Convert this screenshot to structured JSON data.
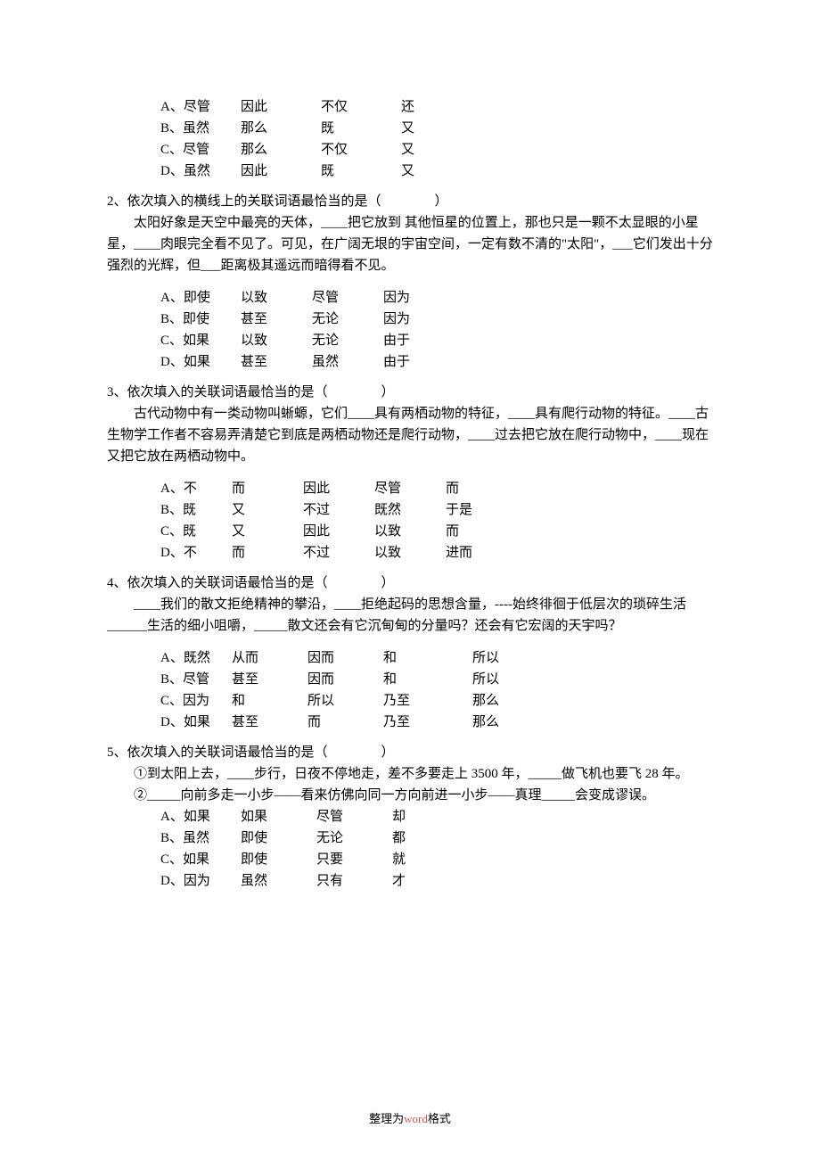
{
  "q1": {
    "options": [
      {
        "label": "A、尽管",
        "c1": "因此",
        "c2": "不仅",
        "c3": "还"
      },
      {
        "label": "B、虽然",
        "c1": "那么",
        "c2": "既",
        "c3": "又"
      },
      {
        "label": "C、尽管",
        "c1": "那么",
        "c2": "不仅",
        "c3": "又"
      },
      {
        "label": "D、虽然",
        "c1": "因此",
        "c2": "既",
        "c3": "又"
      }
    ]
  },
  "q2": {
    "stem": "2、依次填入的横线上的关联词语最恰当的是（　　　　）",
    "passage": "太阳好象是天空中最亮的天体，____把它放到 其他恒星的位置上，那也只是一颗不太显眼的小星星，____肉眼完全看不见了。可见，在广阔无垠的宇宙空间，一定有数不清的\"太阳\"，___它们发出十分强烈的光辉，但___距离极其遥远而暗得看不见。",
    "options": [
      {
        "label": "A、即使",
        "c1": "以致",
        "c2": "尽管",
        "c3": "因为"
      },
      {
        "label": "B、即使",
        "c1": "甚至",
        "c2": "无论",
        "c3": "因为"
      },
      {
        "label": "C、如果",
        "c1": "以致",
        "c2": "无论",
        "c3": "由于"
      },
      {
        "label": "D、如果",
        "c1": "甚至",
        "c2": "虽然",
        "c3": "由于"
      }
    ]
  },
  "q3": {
    "stem": "3、依次填入的关联词语最恰当的是（　　　　）",
    "passage": "古代动物中有一类动物叫蜥螈，它们____具有两栖动物的特征，____具有爬行动物的特征。____古生物学工作者不容易弄清楚它到底是两栖动物还是爬行动物，____过去把它放在爬行动物中，____现在又把它放在两栖动物中。",
    "options": [
      {
        "label": "A、不",
        "c1": "而",
        "c2": "因此",
        "c3": "尽管",
        "c4": "而"
      },
      {
        "label": "B、既",
        "c1": "又",
        "c2": "不过",
        "c3": "既然",
        "c4": "于是"
      },
      {
        "label": "C、既",
        "c1": "又",
        "c2": "因此",
        "c3": "以致",
        "c4": "而"
      },
      {
        "label": "D、不",
        "c1": "而",
        "c2": "不过",
        "c3": "以致",
        "c4": "进而"
      }
    ]
  },
  "q4": {
    "stem": "4、依次填入的关联词语最恰当的是（　　　　）",
    "passage": "____我们的散文拒绝精神的攀沿，____拒绝起码的思想含量，----始终徘徊于低层次的琐碎生活______生活的细小咀嚼，_____散文还会有它沉甸甸的分量吗？还会有它宏阔的天宇吗？",
    "options": [
      {
        "label": "A、既然",
        "c1": "从而",
        "c2": "因而",
        "c3": "和",
        "c4": "所以"
      },
      {
        "label": "B、尽管",
        "c1": "甚至",
        "c2": "因而",
        "c3": "和",
        "c4": "所以"
      },
      {
        "label": "C、因为",
        "c1": "和",
        "c2": "所以",
        "c3": "乃至",
        "c4": "那么"
      },
      {
        "label": "D、如果",
        "c1": "甚至",
        "c2": "而",
        "c3": "乃至",
        "c4": "那么"
      }
    ]
  },
  "q5": {
    "stem": "5、依次填入的关联词语最恰当的是（　　　　）",
    "passage1": "①到太阳上去，____步行，日夜不停地走，差不多要走上 3500 年，_____做飞机也要飞 28 年。",
    "passage2": "②_____向前多走一小步——看来仿佛向同一方向前进一小步——真理_____会变成谬误。",
    "options": [
      {
        "label": "A、如果",
        "c1": "如果",
        "c2": "尽管",
        "c3": "却"
      },
      {
        "label": "B、虽然",
        "c1": "即使",
        "c2": "无论",
        "c3": "都"
      },
      {
        "label": "C、如果",
        "c1": "即使",
        "c2": "只要",
        "c3": "就"
      },
      {
        "label": "D、因为",
        "c1": "虽然",
        "c2": "只有",
        "c3": "才"
      }
    ]
  },
  "footer": {
    "prefix": "整理为",
    "word": "word",
    "suffix": "格式"
  }
}
